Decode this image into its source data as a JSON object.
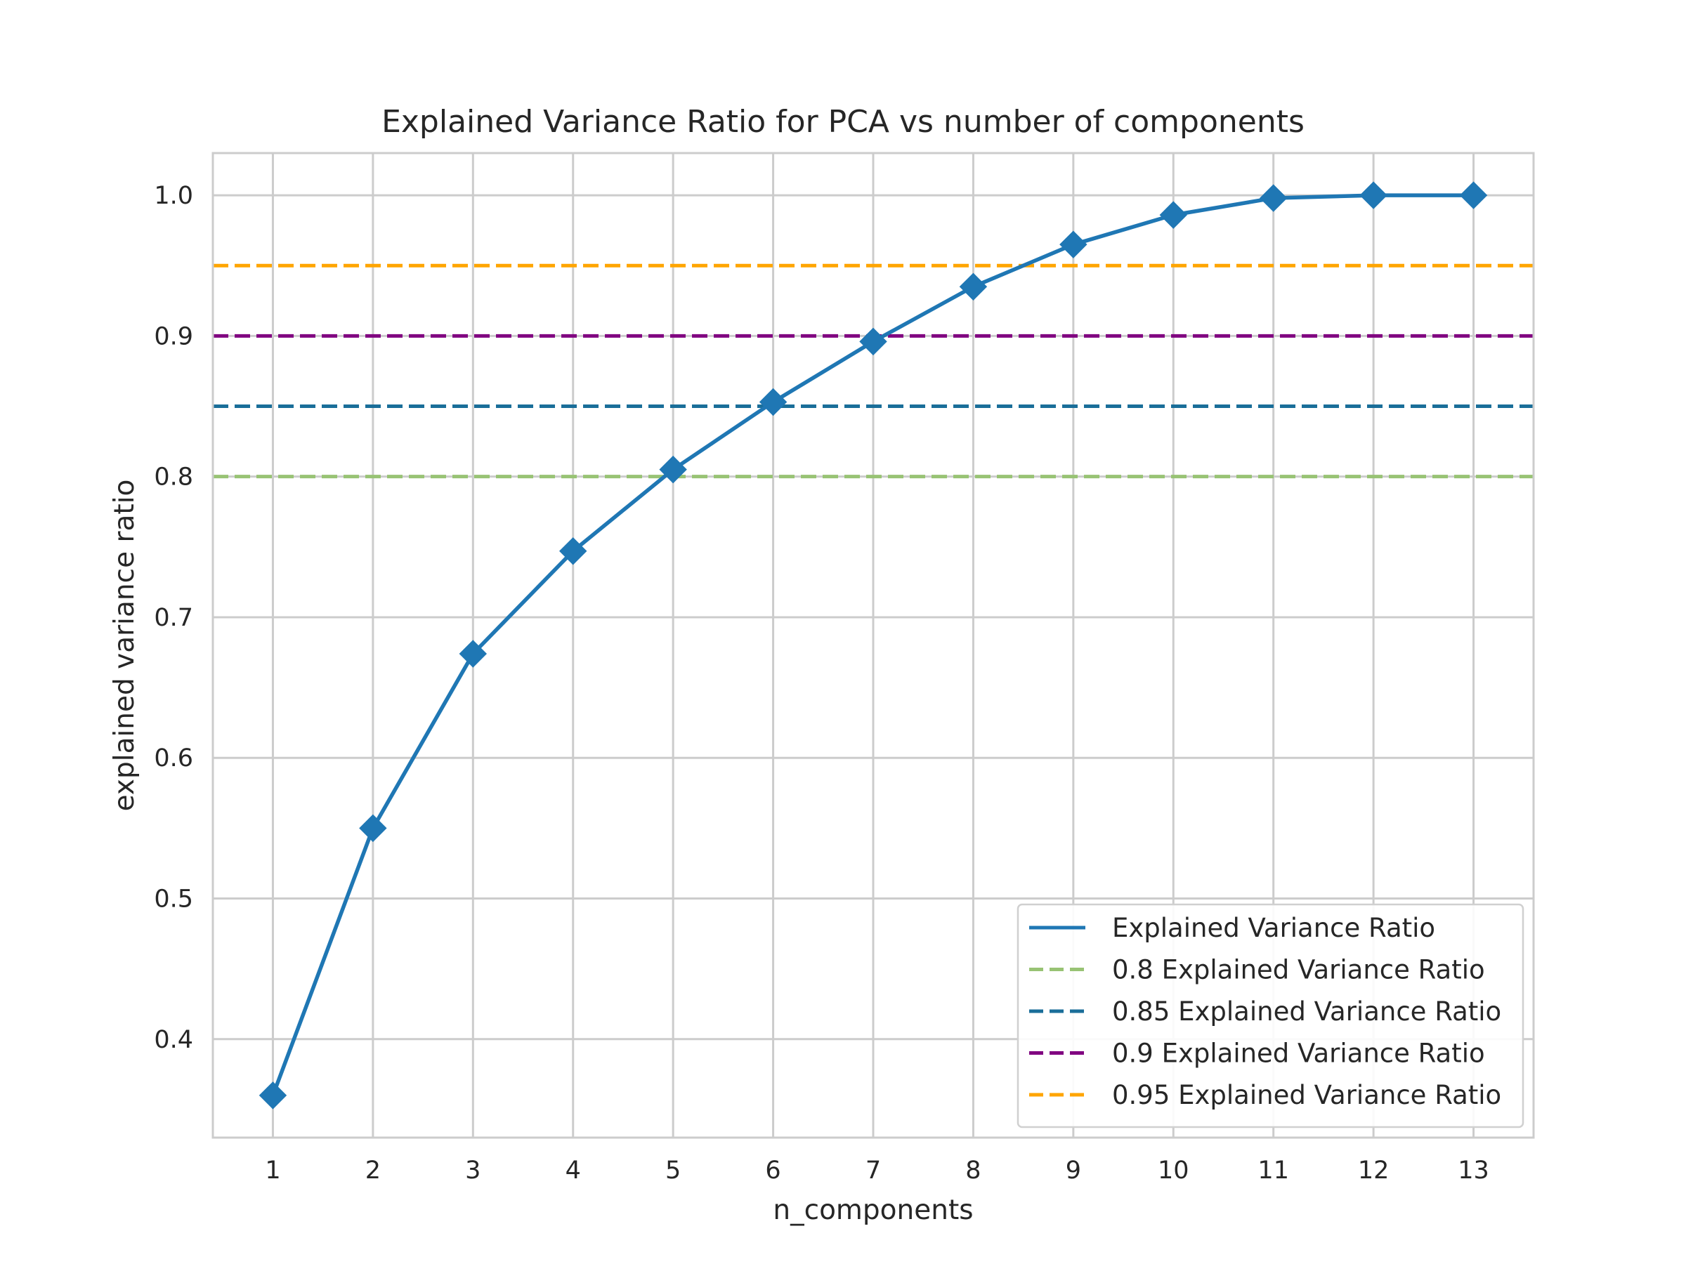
{
  "chart_data": {
    "type": "line",
    "title": "Explained Variance Ratio for PCA vs number of components",
    "xlabel": "n_components",
    "ylabel": "explained variance ratio",
    "x": [
      1,
      2,
      3,
      4,
      5,
      6,
      7,
      8,
      9,
      10,
      11,
      12,
      13
    ],
    "xlim": [
      0.4,
      13.6
    ],
    "ylim": [
      0.33,
      1.03
    ],
    "xticks": [
      "1",
      "2",
      "3",
      "4",
      "5",
      "6",
      "7",
      "8",
      "9",
      "10",
      "11",
      "12",
      "13"
    ],
    "yticks": [
      0.4,
      0.5,
      0.6,
      0.7,
      0.8,
      0.9,
      1.0
    ],
    "ytick_labels": [
      "0.4",
      "0.5",
      "0.6",
      "0.7",
      "0.8",
      "0.9",
      "1.0"
    ],
    "grid": true,
    "legend_position": "lower-right",
    "series": [
      {
        "name": "Explained Variance Ratio",
        "style": "solid",
        "marker": "diamond",
        "color": "#1f77b4",
        "values": [
          0.36,
          0.55,
          0.674,
          0.747,
          0.805,
          0.853,
          0.896,
          0.935,
          0.965,
          0.986,
          0.998,
          1.0,
          1.0
        ]
      }
    ],
    "reference_lines": [
      {
        "name": "0.8 Explained Variance Ratio",
        "y": 0.8,
        "style": "dashed",
        "color": "#98c374"
      },
      {
        "name": "0.85 Explained Variance Ratio",
        "y": 0.85,
        "style": "dashed",
        "color": "#1a6e99"
      },
      {
        "name": "0.9 Explained Variance Ratio",
        "y": 0.9,
        "style": "dashed",
        "color": "#800080"
      },
      {
        "name": "0.95 Explained Variance Ratio",
        "y": 0.95,
        "style": "dashed",
        "color": "#ffa500"
      }
    ]
  }
}
